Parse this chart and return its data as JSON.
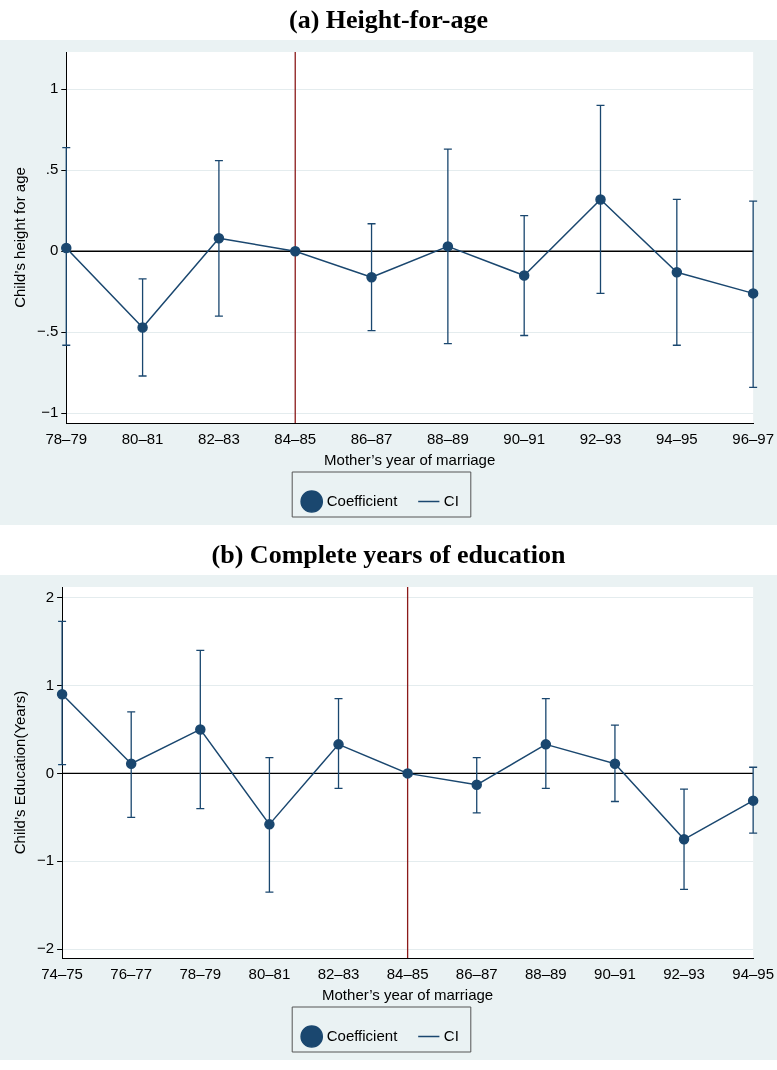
{
  "chart_data": [
    {
      "type": "line",
      "title": "(a) Height-for-age",
      "xlabel": "Mother’s year of marriage",
      "ylabel": "Child’s height for age",
      "categories": [
        "78–79",
        "80–81",
        "82–83",
        "84–85",
        "86–87",
        "88–89",
        "90–91",
        "92–93",
        "94–95",
        "96–97"
      ],
      "series": [
        {
          "name": "Coefficient",
          "color": "#1a476f",
          "values": [
            0.02,
            -0.47,
            0.08,
            0,
            -0.16,
            0.03,
            -0.15,
            0.32,
            -0.13,
            -0.26
          ],
          "errors": [
            [
              -0.58,
              0.64
            ],
            [
              -0.77,
              -0.17
            ],
            [
              -0.4,
              0.56
            ],
            null,
            [
              -0.49,
              0.17
            ],
            [
              -0.57,
              0.63
            ],
            [
              -0.52,
              0.22
            ],
            [
              -0.26,
              0.9
            ],
            [
              -0.58,
              0.32
            ],
            [
              -0.84,
              0.31
            ]
          ]
        }
      ],
      "ylim": [
        -1.06,
        1.23
      ],
      "yticks": [
        {
          "value": -1,
          "label": "−1"
        },
        {
          "value": -0.5,
          "label": "−.5"
        },
        0,
        {
          "value": 0.5,
          "label": ".5"
        },
        1
      ],
      "grid": "y",
      "legend": "bottom",
      "marker": "circle",
      "ref_lines": [
        {
          "axis": "x",
          "value": "84–85",
          "color": "#8b1a1a"
        },
        {
          "axis": "y",
          "value": 0,
          "color": "#000000"
        }
      ],
      "annotations": [
        "CI"
      ]
    },
    {
      "type": "line",
      "title": "(b) Complete years of education",
      "xlabel": "Mother’s year of marriage",
      "ylabel": "Child’s Education(Years)",
      "categories": [
        "74–75",
        "76–77",
        "78–79",
        "80–81",
        "82–83",
        "84–85",
        "86–87",
        "88–89",
        "90–91",
        "92–93",
        "94–95"
      ],
      "series": [
        {
          "name": "Coefficient",
          "color": "#1a476f",
          "values": [
            0.9,
            0.11,
            0.5,
            -0.58,
            0.33,
            0,
            -0.13,
            0.33,
            0.11,
            -0.75,
            -0.31
          ],
          "errors": [
            [
              0.1,
              1.73
            ],
            [
              -0.5,
              0.7
            ],
            [
              -0.4,
              1.4
            ],
            [
              -1.35,
              0.18
            ],
            [
              -0.17,
              0.85
            ],
            null,
            [
              -0.45,
              0.18
            ],
            [
              -0.17,
              0.85
            ],
            [
              -0.32,
              0.55
            ],
            [
              -1.32,
              -0.18
            ],
            [
              -0.68,
              0.07
            ]
          ]
        }
      ],
      "ylim": [
        -2.1,
        2.12
      ],
      "yticks": [
        {
          "value": -2,
          "label": "−2"
        },
        {
          "value": -1,
          "label": "−1"
        },
        0,
        1,
        2
      ],
      "grid": "y",
      "legend": "bottom",
      "marker": "circle",
      "ref_lines": [
        {
          "axis": "x",
          "value": "84–85",
          "color": "#8b1a1a"
        },
        {
          "axis": "y",
          "value": 0,
          "color": "#000000"
        }
      ],
      "annotations": [
        "CI"
      ]
    }
  ]
}
